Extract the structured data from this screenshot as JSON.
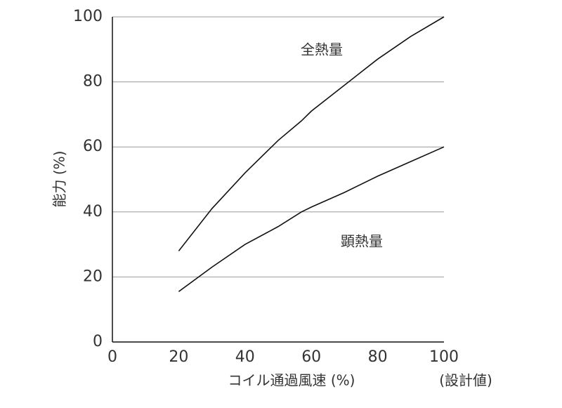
{
  "chart_data": {
    "type": "line",
    "xlabel": "コイル通過風速 (%)",
    "xlabel_note": "(設計値)",
    "ylabel": "能力 (%)",
    "x": [
      20,
      30,
      40,
      50,
      57,
      60,
      70,
      80,
      90,
      100
    ],
    "series": [
      {
        "name": "全熱量",
        "color": "#111111",
        "values": [
          28,
          41,
          52,
          62,
          68,
          71,
          79,
          87,
          94,
          100
        ]
      },
      {
        "name": "顕熱量",
        "color": "#111111",
        "values": [
          15.5,
          23,
          30,
          35.5,
          40,
          41.5,
          46,
          51,
          55.5,
          60
        ]
      }
    ],
    "xlim": [
      0,
      100
    ],
    "xticks": [
      0,
      20,
      40,
      60,
      80,
      100
    ],
    "ylim": [
      0,
      100
    ],
    "yticks": [
      0,
      20,
      40,
      60,
      80,
      100
    ],
    "grid": true
  }
}
